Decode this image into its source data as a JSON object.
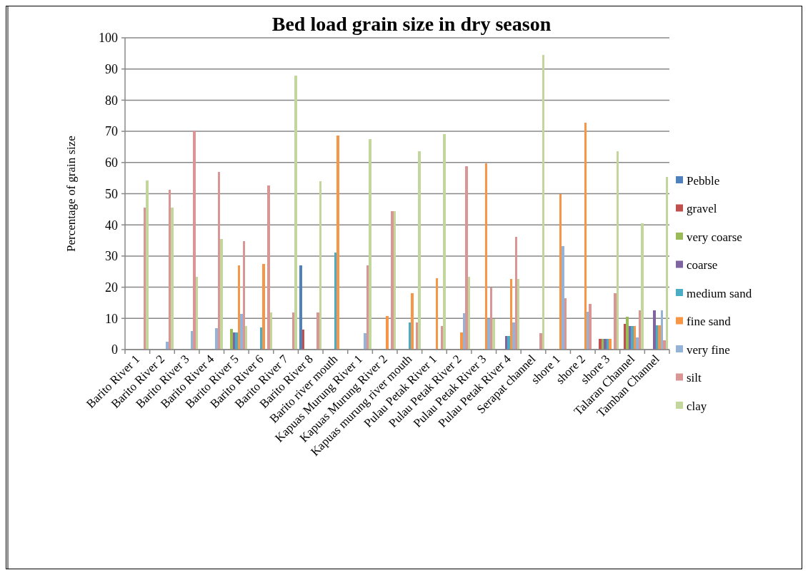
{
  "chart_data": {
    "type": "bar",
    "title": "Bed load grain size in dry season",
    "ylabel": "Percentage of grain size",
    "categories": [
      "Barito River 1",
      "Barito River 2",
      "Barito River 3",
      "Barito River 4",
      "Barito River 5",
      "Barito River 6",
      "Barito River 7",
      "Barito River 8",
      "Barito river mouth",
      "Kapuas Murung River 1",
      "Kapuas Murung River 2",
      "Kapuas murung river mouth",
      "Pulau Petak River 1",
      "Pulau Petak River 2",
      "Pulau Petak River 3",
      "Pulau Petak River 4",
      "Serapat channel",
      "shore 1",
      "shore 2",
      "shore 3",
      "Talaran Channel",
      "Tamban Channel"
    ],
    "series": [
      {
        "name": "Pebble",
        "color": "#4f81bd",
        "values": [
          null,
          null,
          null,
          null,
          null,
          null,
          null,
          26.9,
          null,
          null,
          null,
          null,
          null,
          null,
          null,
          null,
          null,
          null,
          null,
          null,
          null,
          null
        ]
      },
      {
        "name": "gravel",
        "color": "#c0504d",
        "values": [
          null,
          null,
          null,
          null,
          null,
          null,
          null,
          6.5,
          null,
          null,
          null,
          null,
          null,
          null,
          null,
          null,
          null,
          null,
          null,
          3.4,
          8.3,
          null
        ]
      },
      {
        "name": "very coarse",
        "color": "#9bbb59",
        "values": [
          null,
          null,
          null,
          null,
          6.6,
          null,
          null,
          null,
          null,
          null,
          null,
          null,
          null,
          null,
          null,
          null,
          null,
          null,
          null,
          3.4,
          10.5,
          null
        ]
      },
      {
        "name": "coarse",
        "color": "#8064a2",
        "values": [
          null,
          null,
          null,
          null,
          5.5,
          null,
          null,
          null,
          null,
          null,
          null,
          null,
          null,
          null,
          null,
          4.3,
          null,
          null,
          null,
          3.4,
          7.5,
          12.5
        ]
      },
      {
        "name": "medium sand",
        "color": "#4bacc6",
        "values": [
          null,
          null,
          null,
          null,
          5.5,
          7.1,
          null,
          null,
          31.1,
          null,
          null,
          8.8,
          null,
          null,
          null,
          4.3,
          null,
          null,
          null,
          3.4,
          7.5,
          7.8
        ]
      },
      {
        "name": "fine sand",
        "color": "#f79646",
        "values": [
          null,
          null,
          null,
          null,
          26.9,
          27.5,
          null,
          null,
          68.6,
          null,
          10.8,
          18.0,
          22.9,
          5.6,
          59.8,
          22.6,
          null,
          49.8,
          72.8,
          3.4,
          7.5,
          7.8
        ]
      },
      {
        "name": "very fine",
        "color": "#95b3d7",
        "values": [
          null,
          2.6,
          6.0,
          6.9,
          11.5,
          null,
          null,
          null,
          null,
          5.2,
          null,
          null,
          null,
          11.6,
          9.9,
          8.8,
          null,
          33.2,
          12.2,
          null,
          4.0,
          12.5
        ]
      },
      {
        "name": "silt",
        "color": "#d99694",
        "values": [
          45.6,
          51.3,
          70.2,
          57.0,
          34.7,
          52.7,
          11.8,
          12.0,
          null,
          26.9,
          44.3,
          8.8,
          7.5,
          58.8,
          19.8,
          36.2,
          5.2,
          16.5,
          14.7,
          18.0,
          12.6,
          2.9
        ]
      },
      {
        "name": "clay",
        "color": "#c3d69b",
        "values": [
          54.2,
          45.6,
          23.3,
          35.5,
          7.6,
          12.0,
          87.9,
          54.0,
          null,
          67.5,
          44.3,
          63.6,
          69.2,
          23.4,
          9.9,
          22.6,
          94.5,
          null,
          null,
          63.6,
          40.5,
          55.4
        ]
      }
    ],
    "ylim": [
      0,
      100
    ],
    "yticks": [
      0,
      10,
      20,
      30,
      40,
      50,
      60,
      70,
      80,
      90,
      100
    ],
    "grid": "y",
    "legend": "right"
  }
}
